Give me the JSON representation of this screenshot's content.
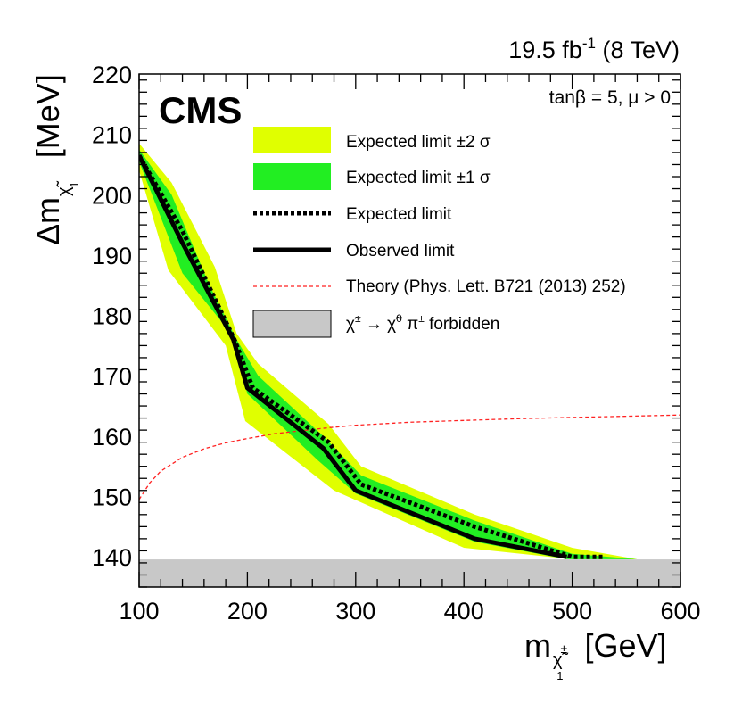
{
  "chart_data": {
    "type": "line",
    "experiment": "CMS",
    "lumi_text": "19.5 fb",
    "lumi_exp": "-1",
    "energy_text": "(8 TeV)",
    "model_text": "tanβ = 5, μ > 0",
    "xlabel_main": "m",
    "xlabel_unit": "[GeV]",
    "ylabel_main": "Δm",
    "ylabel_unit": "[MeV]",
    "xlim": [
      100,
      600
    ],
    "ylim": [
      135,
      220
    ],
    "x_ticks": [
      100,
      200,
      300,
      400,
      500,
      600
    ],
    "y_ticks": [
      140,
      150,
      160,
      170,
      180,
      190,
      200,
      210,
      220
    ],
    "legend": {
      "band2": "Expected limit ±2 σ",
      "band1": "Expected limit ±1 σ",
      "expected": "Expected limit",
      "observed": "Observed limit",
      "theory": "Theory (Phys. Lett. B721 (2013) 252)",
      "forbidden": "forbidden"
    },
    "colors": {
      "band2": "#e0ff00",
      "band1": "#22ee22",
      "forbidden": "#c8c8c8",
      "theory": "#ff2222",
      "lines": "#000000"
    },
    "forbidden_region": {
      "ymin": 135,
      "ymax": 139.57
    },
    "series": [
      {
        "name": "Observed limit",
        "x": [
          100,
          140,
          187,
          200,
          270,
          300,
          410,
          495
        ],
        "y": [
          206.5,
          192,
          176,
          168,
          158,
          151,
          143,
          140
        ]
      },
      {
        "name": "Expected limit",
        "x": [
          100,
          140,
          188,
          205,
          275,
          305,
          410,
          500,
          530
        ],
        "y": [
          206.5,
          194,
          176,
          168,
          159,
          152,
          145,
          140,
          140
        ]
      },
      {
        "name": "Theory",
        "x": [
          100,
          110,
          120,
          140,
          160,
          180,
          200,
          225,
          250,
          275,
          300,
          350,
          400,
          450,
          500,
          550,
          600
        ],
        "y": [
          149.5,
          152.3,
          154.2,
          156.5,
          157.9,
          158.9,
          159.6,
          160.4,
          160.9,
          161.4,
          161.8,
          162.3,
          162.6,
          162.9,
          163.1,
          163.3,
          163.5
        ]
      }
    ],
    "band1_sigma": {
      "upper": [
        [
          100,
          207.5
        ],
        [
          130,
          200
        ],
        [
          165,
          185
        ],
        [
          190,
          176
        ],
        [
          210,
          170
        ],
        [
          270,
          160
        ],
        [
          305,
          153.5
        ],
        [
          410,
          146
        ],
        [
          500,
          140.5
        ],
        [
          560,
          139.6
        ]
      ],
      "lower": [
        [
          100,
          205.5
        ],
        [
          140,
          187
        ],
        [
          185,
          177
        ],
        [
          200,
          167
        ],
        [
          265,
          156
        ],
        [
          300,
          150.5
        ],
        [
          410,
          142.5
        ],
        [
          495,
          139.6
        ]
      ]
    },
    "band2_sigma": {
      "upper": [
        [
          100,
          208.5
        ],
        [
          130,
          202
        ],
        [
          170,
          188
        ],
        [
          190,
          177
        ],
        [
          210,
          172
        ],
        [
          275,
          162
        ],
        [
          305,
          155
        ],
        [
          410,
          147
        ],
        [
          500,
          141.5
        ],
        [
          560,
          139.6
        ]
      ],
      "lower": [
        [
          100,
          204
        ],
        [
          127,
          187.5
        ],
        [
          180,
          175
        ],
        [
          198,
          162.5
        ],
        [
          230,
          158
        ],
        [
          280,
          151
        ],
        [
          400,
          141.5
        ],
        [
          500,
          139.6
        ]
      ]
    }
  }
}
